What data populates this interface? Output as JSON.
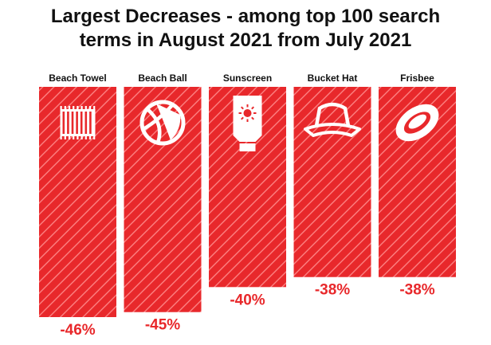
{
  "chart_data": {
    "type": "bar",
    "title_line1": "Largest Decreases - among top 100 search",
    "title_line2": "terms in August 2021 from July 2021",
    "categories": [
      "Beach Towel",
      "Beach Ball",
      "Sunscreen",
      "Bucket Hat",
      "Frisbee"
    ],
    "values": [
      -46,
      -45,
      -40,
      -38,
      -38
    ],
    "value_labels": [
      "-46%",
      "-45%",
      "-40%",
      "-38%",
      "-38%"
    ],
    "icons": [
      "beach-towel-icon",
      "beach-ball-icon",
      "sunscreen-icon",
      "bucket-hat-icon",
      "frisbee-icon"
    ],
    "orientation": "downward-from-top",
    "ylim": [
      0,
      -46
    ],
    "grid": false,
    "bar_color": "#e8282b",
    "label_color": "#e8282b"
  }
}
